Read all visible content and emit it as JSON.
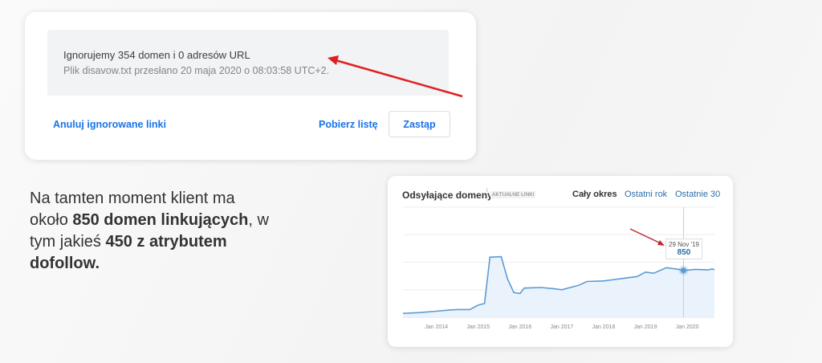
{
  "disavow": {
    "title": "Ignorujemy 354 domen i 0 adresów URL",
    "subtitle": "Plik disavow.txt przesłano 20 maja 2020 o 08:03:58 UTC+2.",
    "cancel_link": "Anuluj ignorowane linki",
    "download_link": "Pobierz listę",
    "replace_button": "Zastąp"
  },
  "paragraph": {
    "p1": "Na tamten moment klient ma około ",
    "b1": "850 domen linkujących",
    "p2": ", w tym jakieś ",
    "b2": "450 z atrybutem dofollow."
  },
  "colors": {
    "accent": "#1a73e8",
    "arrow": "#e02020",
    "line": "#5b9bd5",
    "fill": "#eaf3fb"
  },
  "chart_widget": {
    "title": "Odsyłające domeny",
    "info_icon": "info-icon",
    "badge": "AKTUALNE LINKI",
    "tabs": [
      {
        "label": "Cały okres",
        "active": true
      },
      {
        "label": "Ostatni rok",
        "active": false
      },
      {
        "label": "Ostatnie 30",
        "active": false
      }
    ]
  },
  "chart_data": {
    "type": "area",
    "xlim": [
      2013.2,
      2020.65
    ],
    "ylim": [
      0,
      2000
    ],
    "grid": "horizontal",
    "x_ticks": [
      "Jan 2014",
      "Jan 2015",
      "Jan 2016",
      "Jan 2017",
      "Jan 2018",
      "Jan 2019",
      "Jan 2020"
    ],
    "x_tick_values": [
      2014,
      2015,
      2016,
      2017,
      2018,
      2019,
      2020
    ],
    "x": [
      2013.2,
      2013.6,
      2014.0,
      2014.3,
      2014.5,
      2014.8,
      2015.0,
      2015.15,
      2015.22,
      2015.28,
      2015.55,
      2015.7,
      2015.85,
      2016.0,
      2016.1,
      2016.5,
      2016.8,
      2017.0,
      2017.2,
      2017.4,
      2017.6,
      2018.0,
      2018.4,
      2018.8,
      2019.0,
      2019.2,
      2019.5,
      2019.8,
      2019.91,
      2020.2,
      2020.5,
      2020.6,
      2020.65
    ],
    "y": [
      70,
      85,
      110,
      130,
      140,
      140,
      220,
      250,
      700,
      1090,
      1100,
      700,
      450,
      430,
      530,
      540,
      520,
      500,
      540,
      580,
      650,
      660,
      700,
      740,
      820,
      800,
      900,
      870,
      850,
      870,
      860,
      880,
      860
    ],
    "tooltip": {
      "date": "29 Nov '19",
      "value": "850",
      "x": 2019.91
    }
  }
}
